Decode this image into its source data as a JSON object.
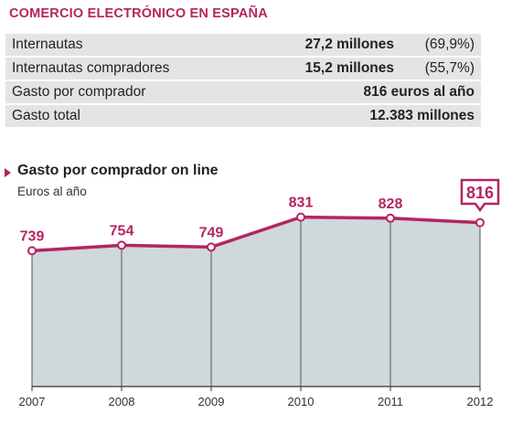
{
  "header": {
    "title": "COMERCIO ELECTRÓNICO EN ESPAÑA"
  },
  "stats": [
    {
      "label": "Internautas",
      "value": "27,2 millones",
      "pct": "(69,9%)"
    },
    {
      "label": "Internautas compradores",
      "value": "15,2 millones",
      "pct": "(55,7%)"
    },
    {
      "label": "Gasto por comprador",
      "value": "816 euros al año",
      "pct": ""
    },
    {
      "label": "Gasto total",
      "value": "12.383 millones",
      "pct": ""
    }
  ],
  "colors": {
    "accent": "#b5245f",
    "area": "#cfd8da",
    "row_bg": "#e4e4e4"
  },
  "chart_data": {
    "type": "area",
    "title": "Gasto por comprador on line",
    "subtitle": "Euros al año",
    "categories": [
      "2007",
      "2008",
      "2009",
      "2010",
      "2011",
      "2012"
    ],
    "values": [
      739,
      754,
      749,
      831,
      828,
      816
    ],
    "value_labels": [
      "739",
      "754",
      "749",
      "831",
      "828",
      "816"
    ],
    "highlight_index": 5,
    "ylim": [
      0,
      860
    ],
    "grid": false,
    "legend": "none"
  }
}
